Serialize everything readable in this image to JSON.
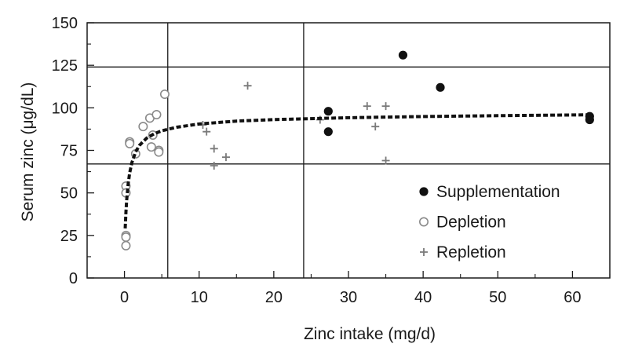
{
  "chart_data": {
    "type": "scatter",
    "xlabel": "Zinc intake (mg/d)",
    "ylabel": "Serum zinc (μg/dL)",
    "xlim": [
      -5,
      65
    ],
    "ylim": [
      0,
      150
    ],
    "xticks": [
      0,
      10,
      20,
      30,
      40,
      50,
      60
    ],
    "yticks": [
      0,
      25,
      50,
      75,
      100,
      125,
      150
    ],
    "grid": false,
    "reference_lines": {
      "vertical": [
        5.8,
        24
      ],
      "horizontal": [
        67,
        124
      ]
    },
    "legend": {
      "placement": "bottom-right"
    },
    "series": [
      {
        "name": "Supplementation",
        "marker": "filled-circle",
        "color": "#111111",
        "points": [
          [
            27.3,
            98
          ],
          [
            27.3,
            86
          ],
          [
            37.3,
            131
          ],
          [
            42.3,
            112
          ],
          [
            62.3,
            95
          ],
          [
            62.3,
            93
          ]
        ]
      },
      {
        "name": "Depletion",
        "marker": "open-circle",
        "color": "#8a8a8a",
        "points": [
          [
            0.2,
            54
          ],
          [
            0.2,
            50
          ],
          [
            0.2,
            25
          ],
          [
            0.2,
            24
          ],
          [
            0.2,
            19
          ],
          [
            0.7,
            80
          ],
          [
            0.7,
            79
          ],
          [
            1.5,
            73
          ],
          [
            2.5,
            89
          ],
          [
            3.4,
            94
          ],
          [
            3.6,
            77
          ],
          [
            3.8,
            84
          ],
          [
            4.3,
            96
          ],
          [
            4.6,
            75
          ],
          [
            4.6,
            74
          ],
          [
            5.4,
            108
          ]
        ]
      },
      {
        "name": "Repletion",
        "marker": "plus",
        "color": "#7a7a7a",
        "points": [
          [
            10.5,
            90
          ],
          [
            11.0,
            86
          ],
          [
            12.0,
            76
          ],
          [
            12.0,
            66
          ],
          [
            13.6,
            71
          ],
          [
            16.5,
            113
          ],
          [
            26.2,
            93
          ],
          [
            32.5,
            101
          ],
          [
            33.6,
            89
          ],
          [
            35.0,
            101
          ],
          [
            35.0,
            69
          ]
        ]
      }
    ],
    "fit_curve": {
      "style": "dashed",
      "color": "#111111",
      "x": [
        0.1,
        0.2,
        0.3,
        0.5,
        0.7,
        1.0,
        1.5,
        2,
        3,
        4,
        5,
        7,
        10,
        15,
        20,
        30,
        40,
        50,
        62.5
      ],
      "y": [
        29.1,
        39.0,
        45.8,
        55.3,
        61.7,
        67.9,
        74.1,
        77.9,
        82.3,
        84.8,
        86.5,
        88.6,
        90.5,
        92.2,
        93.1,
        94.2,
        94.9,
        95.4,
        95.9
      ]
    }
  }
}
